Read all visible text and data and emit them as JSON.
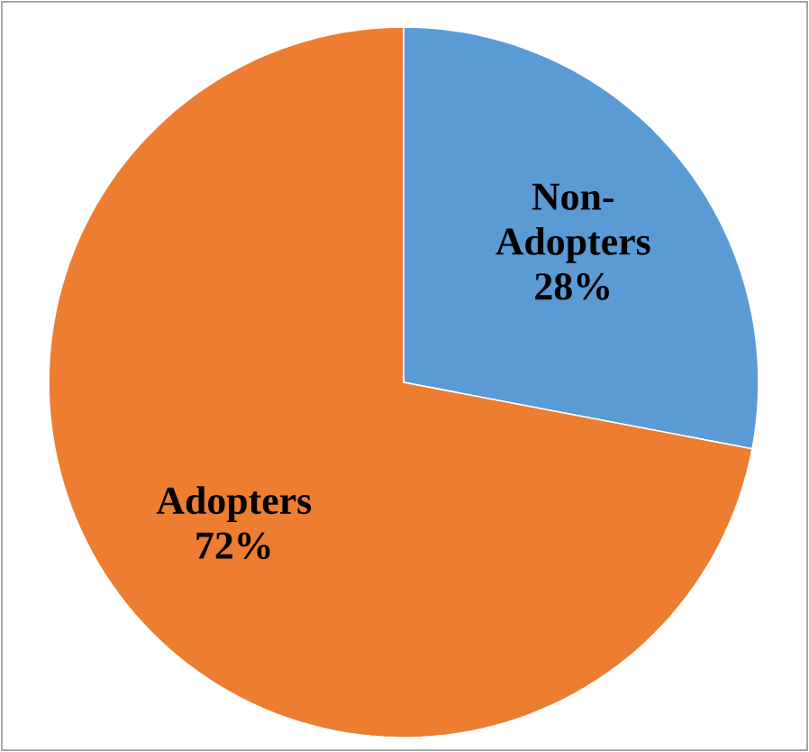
{
  "chart_data": {
    "type": "pie",
    "categories": [
      "Non-Adopters",
      "Adopters"
    ],
    "values": [
      28,
      72
    ],
    "value_labels": [
      "28%",
      "72%"
    ],
    "colors": [
      "#5b9bd5",
      "#ed7d31"
    ]
  }
}
